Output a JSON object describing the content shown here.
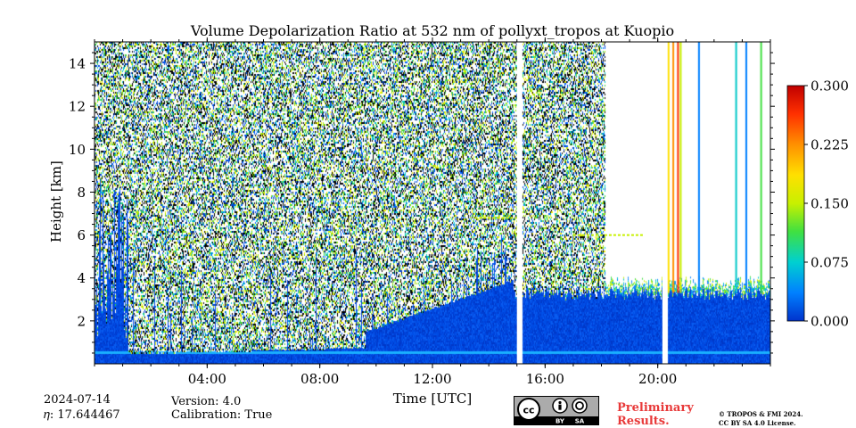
{
  "title": "Volume Depolarization Ratio at 532 nm of pollyxt_tropos at Kuopio",
  "footer": {
    "date": "2024-07-14",
    "eta": "𝜂: 17.644467",
    "version": "Version: 4.0",
    "calibration": "Calibration: True",
    "preliminary_line1": "Preliminary",
    "preliminary_line2": "Results.",
    "license_line1": "© TROPOS & FMI 2024.",
    "license_line2": "CC BY SA 4.0 License.",
    "cc_badge": {
      "icons": [
        "cc-icon",
        "by-icon",
        "sa-icon"
      ],
      "labels": [
        "BY",
        "SA"
      ]
    }
  },
  "colors": {
    "prelim": "#e83a3a",
    "colormap": [
      "#0033cc",
      "#0080ff",
      "#00d0d0",
      "#40e040",
      "#c8f000",
      "#ffe000",
      "#ff9000",
      "#ff3000",
      "#c00000"
    ]
  },
  "chart_data": {
    "type": "heatmap",
    "title": "Volume Depolarization Ratio at 532 nm of pollyxt_tropos at Kuopio",
    "xlabel": "Time [UTC]",
    "ylabel": "Height [km]",
    "xlim": [
      "00:00",
      "24:00"
    ],
    "ylim": [
      0,
      15
    ],
    "x_ticks": [
      "04:00",
      "08:00",
      "12:00",
      "16:00",
      "20:00"
    ],
    "y_ticks": [
      2,
      4,
      6,
      8,
      10,
      12,
      14
    ],
    "colorbar": {
      "range": [
        0.0,
        0.3
      ],
      "ticks": [
        "0.300",
        "0.225",
        "0.150",
        "0.075",
        "0.000"
      ]
    },
    "features": [
      {
        "name": "low-depolarization boundary layer",
        "time": "00:00-24:00",
        "height_km": [
          0,
          4.0
        ]
      },
      {
        "name": "noisy free troposphere",
        "time": "00:00-19:00",
        "height_km": [
          1,
          15
        ]
      },
      {
        "name": "aerosol layer",
        "time": "13:30-15:00",
        "height_km": 6.8
      },
      {
        "name": "aerosol layer",
        "time": "17:00-19:30",
        "height_km": 6.0
      },
      {
        "name": "data gap",
        "time": "15:00-15:10"
      },
      {
        "name": "data gap",
        "time": "20:10-20:20"
      },
      {
        "name": "clear sky, signal only near cloud base",
        "time": "21:00-24:00",
        "height_km": [
          2.5,
          3.5
        ]
      }
    ]
  }
}
